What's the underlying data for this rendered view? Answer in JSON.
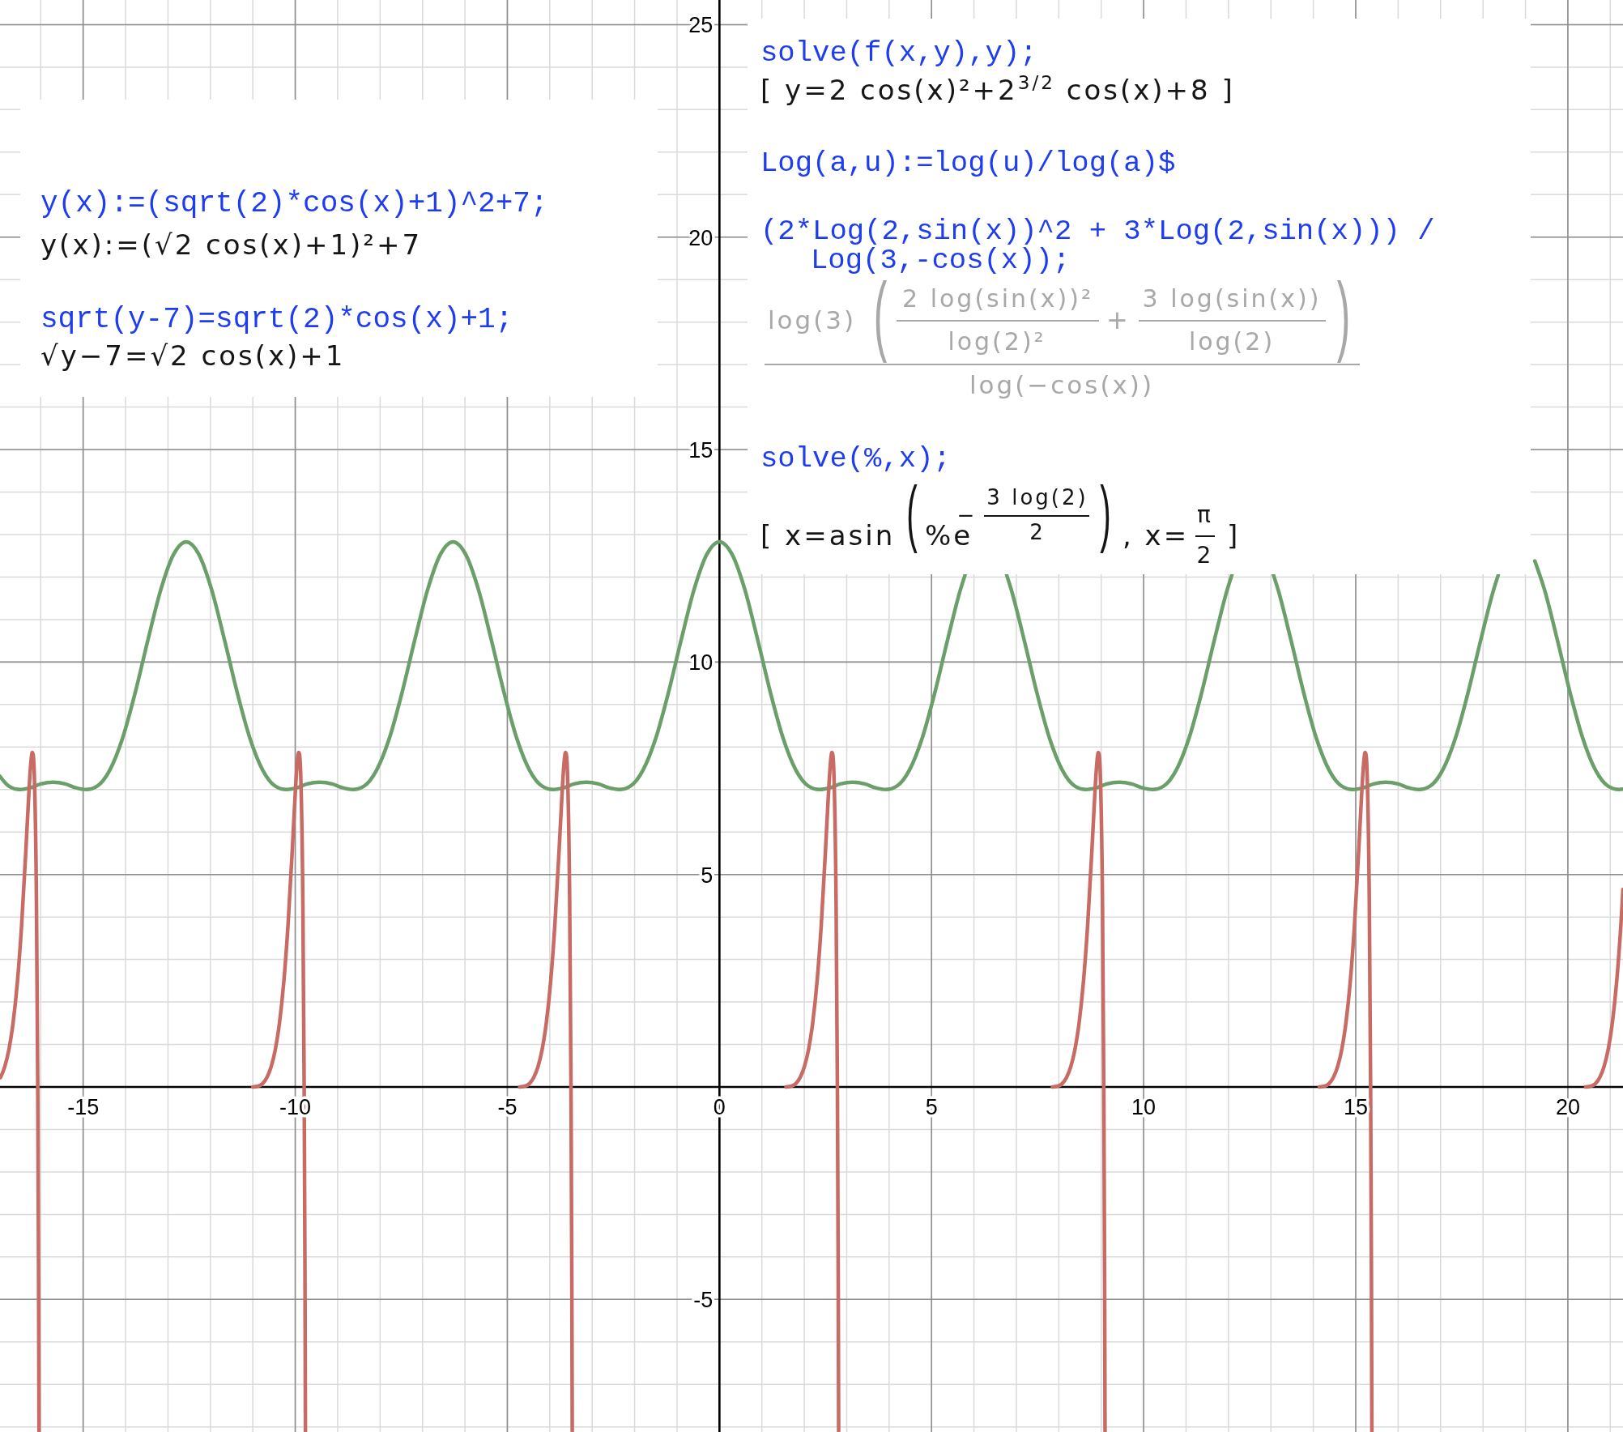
{
  "chart_data": {
    "type": "line",
    "annotations": [
      "y(x):=(sqrt(2)*cos(x)+1)^2+7;",
      "y(x):=(√2 cos(x)+1)²+7",
      "sqrt(y-7)=sqrt(2)*cos(x)+1;",
      "√y−7=√2 cos(x)+1",
      "solve(f(x,y),y);",
      "[ y=2 cos(x)²+2$^{3/2}$ cos(x)+8 ]",
      "Log(a,u):=log(u)/log(a)$",
      "(2*Log(2,sin(x))^2 + 3*Log(2,sin(x))) /",
      "Log(3,-cos(x));",
      "log(3)",
      "(",
      "2 log(sin(x))²",
      "log(2)²",
      "+",
      "3 log(sin(x))",
      "log(2)",
      ")",
      "log(−cos(x))",
      "solve(%,x);",
      "[ x=asin",
      "(",
      "%e",
      "−",
      "3 log(2)",
      "2",
      ")",
      ", x=",
      "π",
      "2",
      "]"
    ],
    "series": [
      {
        "color": "#6b9f69",
        "x": [
          -16.96,
          -16.75,
          -16.49,
          -16.25,
          -16.0,
          -15.71,
          -15.42,
          -15.17,
          -14.93,
          -14.67,
          -14.37,
          -14.07,
          -13.77,
          -13.47,
          -13.17,
          -12.87,
          -12.57,
          -12.27,
          -11.97,
          -11.67,
          -11.37,
          -11.07,
          -10.77,
          -10.47,
          -10.21,
          -9.97,
          -9.72,
          -9.42,
          -9.13,
          -8.88,
          -8.64,
          -8.38,
          -8.08,
          -7.78,
          -7.48,
          -7.18,
          -6.88,
          -6.58,
          -6.28,
          -5.98,
          -5.68,
          -5.38,
          -5.08,
          -4.78,
          -4.48,
          -4.18,
          -3.92,
          -3.68,
          -3.43,
          -3.14,
          -2.85,
          -2.6,
          -2.36,
          -2.1,
          -1.8,
          -1.5,
          -1.2,
          -0.9,
          -0.6,
          -0.3,
          0,
          0.3,
          0.6,
          0.9,
          1.2,
          1.5,
          1.8,
          2.1,
          2.36,
          2.6,
          2.85,
          3.14,
          3.43,
          3.68,
          3.92,
          4.18,
          4.48,
          4.78,
          5.08,
          5.38,
          5.68,
          5.79,
          6.28,
          6.77,
          6.88,
          7.18,
          7.48,
          7.78,
          8.08,
          8.38,
          8.64,
          8.88,
          9.13,
          9.42,
          9.72,
          9.97,
          10.21,
          10.47,
          10.77,
          11.07,
          11.37,
          11.67,
          11.97,
          12.08,
          12.57,
          13.06,
          13.17,
          13.47,
          13.77,
          14.07,
          14.37,
          14.67,
          14.93,
          15.17,
          15.42,
          15.71,
          16.0,
          16.25,
          16.49,
          16.75,
          17.05,
          17.35,
          17.65,
          17.95,
          18.25,
          18.36,
          18.85,
          19.22,
          19.45,
          19.75,
          20.05,
          20.35,
          20.65,
          20.95,
          21.21,
          21.3
        ],
        "values": [
          7.31,
          7.08,
          7.0,
          7.04,
          7.13,
          7.17,
          7.13,
          7.04,
          7.0,
          7.08,
          7.46,
          8.21,
          9.29,
          10.53,
          11.7,
          12.53,
          12.83,
          12.53,
          11.7,
          10.53,
          9.29,
          8.21,
          7.46,
          7.08,
          7.0,
          7.04,
          7.13,
          7.17,
          7.13,
          7.04,
          7.0,
          7.08,
          7.46,
          8.21,
          9.29,
          10.53,
          11.7,
          12.53,
          12.83,
          12.53,
          11.7,
          10.53,
          9.29,
          8.21,
          7.46,
          7.08,
          7.0,
          7.04,
          7.13,
          7.17,
          7.13,
          7.04,
          7.0,
          7.08,
          7.46,
          8.21,
          9.29,
          10.53,
          11.7,
          12.53,
          12.83,
          12.53,
          11.7,
          10.53,
          9.29,
          8.21,
          7.46,
          7.08,
          7.0,
          7.04,
          7.13,
          7.17,
          7.13,
          7.04,
          7.0,
          7.08,
          7.46,
          8.21,
          9.29,
          10.53,
          11.7,
          12.05,
          null,
          12.05,
          11.7,
          10.53,
          9.29,
          8.21,
          7.46,
          7.08,
          7.0,
          7.04,
          7.13,
          7.17,
          7.13,
          7.04,
          7.0,
          7.08,
          7.46,
          8.21,
          9.29,
          10.53,
          11.7,
          12.05,
          null,
          12.05,
          11.7,
          10.53,
          9.29,
          8.21,
          7.46,
          7.08,
          7.0,
          7.04,
          7.13,
          7.17,
          7.13,
          7.04,
          7.0,
          7.08,
          7.46,
          8.21,
          9.29,
          10.53,
          11.7,
          12.05,
          null,
          12.38,
          11.7,
          10.53,
          9.29,
          8.21,
          7.46,
          7.08,
          7.0,
          7.01
        ]
      },
      {
        "color": "#c76b64",
        "x": [
          -16.95,
          -16.85,
          -16.75,
          -16.65,
          -16.55,
          -16.45,
          -16.35,
          -16.3,
          -16.25,
          -16.22,
          -16.2,
          -16.18,
          -16.15,
          -16.1,
          -16.07,
          -16.05,
          -16.04,
          -12.57,
          -11.0,
          -10.87,
          -10.77,
          -10.67,
          -10.57,
          -10.47,
          -10.37,
          -10.27,
          -10.17,
          -10.07,
          -10.02,
          -9.97,
          -9.94,
          -9.92,
          -9.9,
          -9.87,
          -9.82,
          -9.79,
          -9.77,
          -9.76,
          -6.28,
          -4.71,
          -4.58,
          -4.48,
          -4.38,
          -4.28,
          -4.18,
          -4.08,
          -3.98,
          -3.88,
          -3.78,
          -3.73,
          -3.68,
          -3.65,
          -3.63,
          -3.61,
          -3.58,
          -3.53,
          -3.5,
          -3.48,
          -3.47,
          0,
          1.57,
          1.7,
          1.8,
          1.9,
          2.0,
          2.1,
          2.2,
          2.3,
          2.4,
          2.5,
          2.55,
          2.6,
          2.63,
          2.65,
          2.67,
          2.7,
          2.75,
          2.78,
          2.8,
          2.81,
          6.28,
          7.85,
          7.98,
          8.08,
          8.18,
          8.28,
          8.38,
          8.48,
          8.58,
          8.68,
          8.78,
          8.83,
          8.88,
          8.91,
          8.93,
          8.95,
          8.98,
          9.03,
          9.06,
          9.08,
          9.09,
          12.57,
          14.14,
          14.27,
          14.37,
          14.47,
          14.57,
          14.67,
          14.77,
          14.87,
          14.97,
          15.07,
          15.12,
          15.17,
          15.2,
          15.22,
          15.24,
          15.27,
          15.32,
          15.35,
          15.37,
          15.38,
          18.85,
          20.42,
          20.55,
          20.65,
          20.75,
          20.85,
          20.95,
          21.05,
          21.15,
          21.25,
          21.3
        ],
        "values": [
          0.22,
          0.47,
          0.88,
          1.52,
          2.47,
          3.81,
          5.57,
          6.53,
          7.4,
          7.76,
          7.87,
          7.83,
          7.31,
          4.28,
          0.04,
          -4.53,
          -8.1,
          null,
          0,
          0.02,
          0.08,
          0.22,
          0.47,
          0.88,
          1.52,
          2.47,
          3.81,
          5.57,
          6.53,
          7.4,
          7.76,
          7.87,
          7.83,
          7.31,
          4.28,
          0.04,
          -4.53,
          -8.1,
          null,
          0,
          0.02,
          0.08,
          0.22,
          0.47,
          0.88,
          1.52,
          2.47,
          3.81,
          5.57,
          6.53,
          7.4,
          7.76,
          7.87,
          7.83,
          7.31,
          4.28,
          0.04,
          -4.53,
          -8.1,
          null,
          0,
          0.02,
          0.08,
          0.22,
          0.47,
          0.88,
          1.52,
          2.47,
          3.81,
          5.57,
          6.53,
          7.4,
          7.76,
          7.87,
          7.83,
          7.31,
          4.28,
          0.04,
          -4.53,
          -8.1,
          null,
          0,
          0.02,
          0.08,
          0.22,
          0.47,
          0.88,
          1.52,
          2.47,
          3.81,
          5.57,
          6.53,
          7.4,
          7.76,
          7.87,
          7.83,
          7.31,
          4.28,
          0.04,
          -4.53,
          -8.1,
          null,
          0,
          0.02,
          0.08,
          0.22,
          0.47,
          0.88,
          1.52,
          2.47,
          3.81,
          5.57,
          6.53,
          7.4,
          7.76,
          7.87,
          7.83,
          7.31,
          4.28,
          0.04,
          -4.53,
          -8.1,
          null,
          0,
          0.02,
          0.08,
          0.22,
          0.47,
          0.88,
          1.52,
          2.47,
          3.81,
          4.65
        ]
      }
    ],
    "xlim": [
      -16.96,
      21.3
    ],
    "ylim": [
      -8.12,
      25.58
    ],
    "xticks": [
      -15,
      -10,
      -5,
      0,
      5,
      10,
      15,
      20
    ],
    "yticks": [
      -5,
      {
        "value": 0,
        "label": null
      },
      5,
      10,
      15,
      20,
      25
    ],
    "grid": true
  }
}
